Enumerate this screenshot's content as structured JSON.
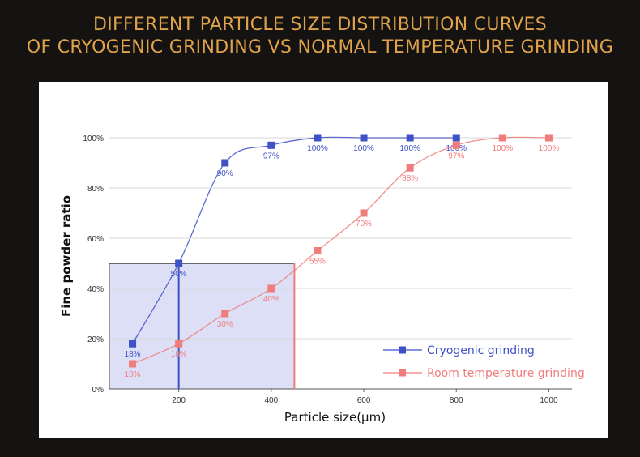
{
  "header": {
    "title_line1": "DIFFERENT PARTICLE SIZE DISTRIBUTION CURVES",
    "title_line2": "OF CRYOGENIC GRINDING VS NORMAL TEMPERATURE GRINDING"
  },
  "chart_data": {
    "type": "line",
    "xlabel": "Particle size(μm)",
    "ylabel": "Fine powder ratio",
    "x_ticks": [
      "200",
      "400",
      "600",
      "800",
      "1000"
    ],
    "y_ticks": [
      "0%",
      "20%",
      "40%",
      "60%",
      "80%",
      "100%"
    ],
    "xlim": [
      50,
      1050
    ],
    "ylim": [
      0,
      100
    ],
    "grid": true,
    "legend_position": "bottom-right",
    "x": [
      100,
      200,
      300,
      400,
      500,
      600,
      700,
      800,
      900,
      1000
    ],
    "series": [
      {
        "name": "Cryogenic grinding",
        "color": "#3f51c7",
        "values": [
          18,
          50,
          90,
          97,
          100,
          100,
          100,
          100,
          null,
          null
        ],
        "labels": [
          "18%",
          "50%",
          "90%",
          "97%",
          "100%",
          "100%",
          "100%",
          "100%",
          null,
          null
        ]
      },
      {
        "name": "Room temperature grinding",
        "color": "#f07c7c",
        "values": [
          10,
          18,
          30,
          40,
          55,
          70,
          88,
          97,
          100,
          100
        ],
        "labels": [
          "10%",
          "18%",
          "30%",
          "40%",
          "55%",
          "70%",
          "88%",
          "97%",
          "100%",
          "100%"
        ]
      }
    ],
    "annotations": {
      "highlight_region": {
        "x_from": 50,
        "x_to": 450,
        "y_from": 0,
        "y_to": 50,
        "fill": "#dcdff5"
      },
      "vertical_line_cryogenic": {
        "x": 200,
        "y_to": 50
      },
      "vertical_line_room": {
        "x": 450,
        "y_to": 50
      }
    }
  }
}
